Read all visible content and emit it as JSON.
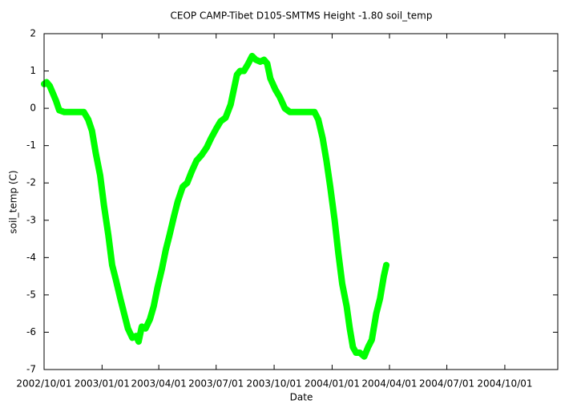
{
  "chart_data": {
    "type": "line",
    "title": "CEOP CAMP-Tibet D105-SMTMS Height -1.80 soil_temp",
    "xlabel": "Date",
    "ylabel": "soil_temp (C)",
    "color": "#00ff00",
    "grid": false,
    "x": [
      "2002/10/01",
      "2002/10/05",
      "2002/10/10",
      "2002/10/15",
      "2002/10/20",
      "2002/10/25",
      "2002/11/02",
      "2002/12/03",
      "2002/12/10",
      "2002/12/16",
      "2002/12/22",
      "2002/12/29",
      "2003/01/04",
      "2003/01/11",
      "2003/01/17",
      "2003/01/23",
      "2003/01/30",
      "2003/02/05",
      "2003/02/11",
      "2003/02/18",
      "2003/02/24",
      "2003/02/28",
      "2003/03/05",
      "2003/03/11",
      "2003/03/18",
      "2003/03/24",
      "2003/03/30",
      "2003/04/06",
      "2003/04/12",
      "2003/04/18",
      "2003/04/25",
      "2003/05/01",
      "2003/05/09",
      "2003/05/16",
      "2003/05/23",
      "2003/05/31",
      "2003/06/08",
      "2003/06/16",
      "2003/06/23",
      "2003/07/01",
      "2003/07/08",
      "2003/07/16",
      "2003/07/24",
      "2003/07/29",
      "2003/08/03",
      "2003/08/08",
      "2003/08/14",
      "2003/08/21",
      "2003/08/27",
      "2003/09/02",
      "2003/09/09",
      "2003/09/15",
      "2003/09/20",
      "2003/09/25",
      "2003/10/03",
      "2003/10/10",
      "2003/10/18",
      "2003/10/26",
      "2003/12/04",
      "2003/12/10",
      "2003/12/17",
      "2003/12/23",
      "2003/12/29",
      "2004/01/05",
      "2004/01/11",
      "2004/01/17",
      "2004/01/24",
      "2004/01/29",
      "2004/02/03",
      "2004/02/08",
      "2004/02/14",
      "2004/02/21",
      "2004/02/27",
      "2004/03/04",
      "2004/03/11",
      "2004/03/17",
      "2004/03/23",
      "2004/03/27"
    ],
    "values": [
      0.65,
      0.7,
      0.6,
      0.4,
      0.2,
      -0.05,
      -0.1,
      -0.1,
      -0.3,
      -0.6,
      -1.2,
      -1.8,
      -2.6,
      -3.4,
      -4.2,
      -4.6,
      -5.1,
      -5.5,
      -5.9,
      -6.15,
      -6.1,
      -6.25,
      -5.85,
      -5.9,
      -5.65,
      -5.3,
      -4.8,
      -4.3,
      -3.8,
      -3.4,
      -2.9,
      -2.5,
      -2.1,
      -2.0,
      -1.7,
      -1.4,
      -1.25,
      -1.05,
      -0.8,
      -0.55,
      -0.35,
      -0.25,
      0.1,
      0.5,
      0.9,
      1.0,
      1.0,
      1.2,
      1.4,
      1.3,
      1.25,
      1.3,
      1.2,
      0.8,
      0.5,
      0.3,
      0.0,
      -0.1,
      -0.1,
      -0.3,
      -0.8,
      -1.4,
      -2.1,
      -3.0,
      -3.9,
      -4.7,
      -5.3,
      -5.9,
      -6.4,
      -6.55,
      -6.55,
      -6.65,
      -6.4,
      -6.2,
      -5.5,
      -5.1,
      -4.5,
      -4.2
    ],
    "xlim": [
      "2002/10/01",
      "2004/12/24"
    ],
    "xticks": [
      "2002/10/01",
      "2003/01/01",
      "2003/04/01",
      "2003/07/01",
      "2003/10/01",
      "2004/01/01",
      "2004/04/01",
      "2004/07/01",
      "2004/10/01"
    ],
    "ylim": [
      -7,
      2
    ],
    "yticks": [
      -7,
      -6,
      -5,
      -4,
      -3,
      -2,
      -1,
      0,
      1,
      2
    ]
  }
}
